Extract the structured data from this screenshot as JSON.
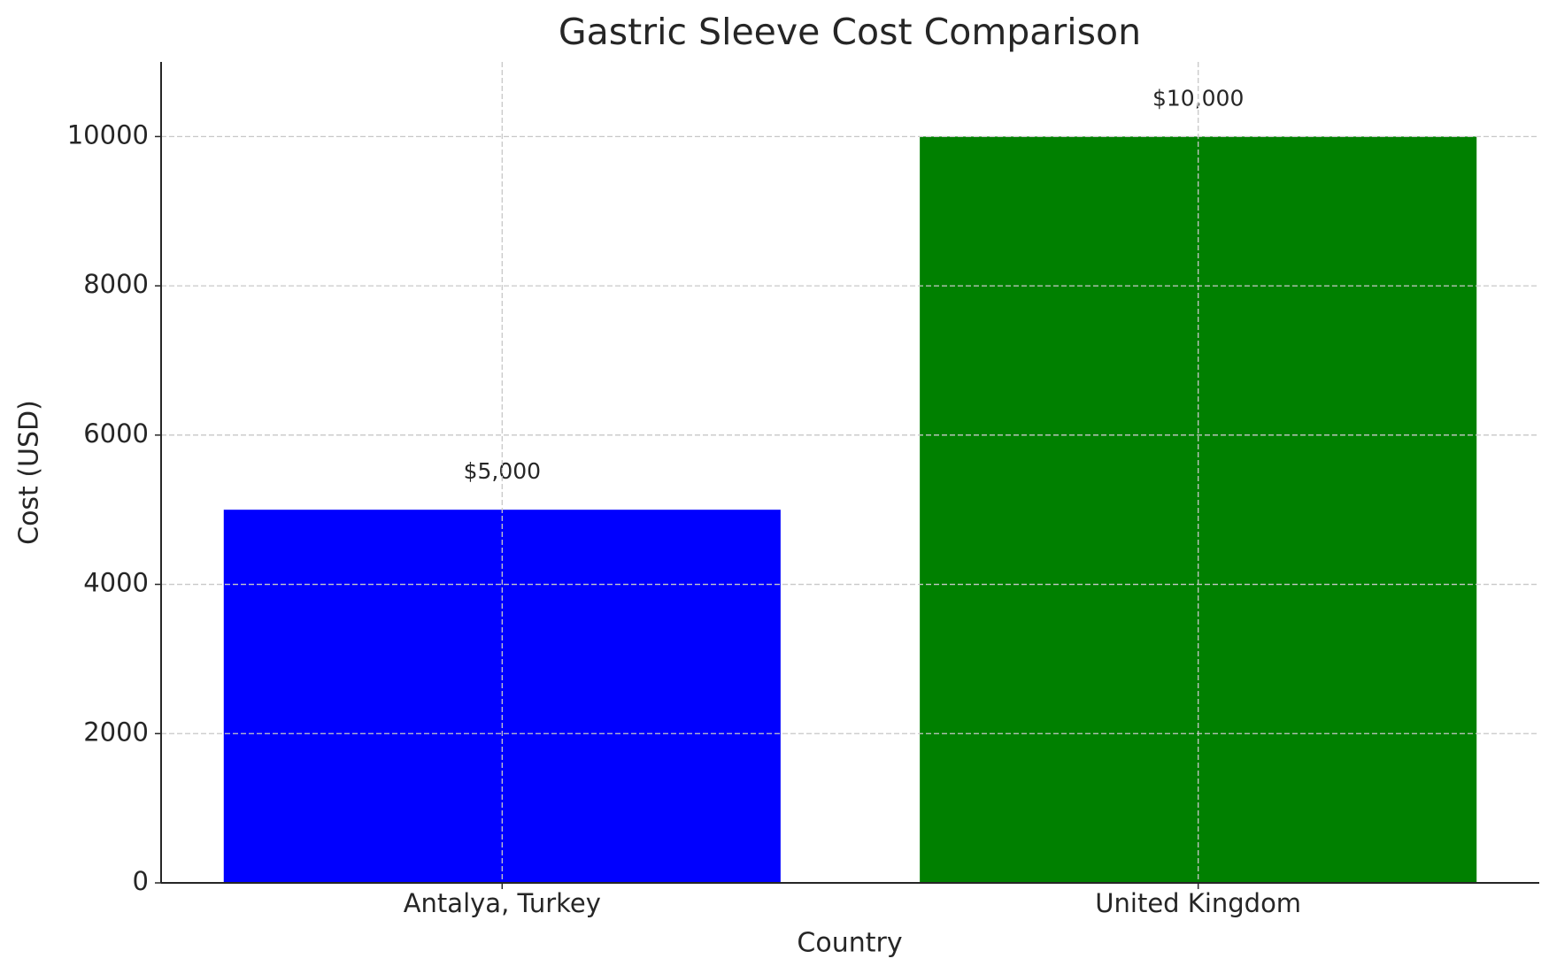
{
  "chart_data": {
    "type": "bar",
    "title": "Gastric Sleeve Cost Comparison",
    "x_label": "Country",
    "y_label": "Cost (USD)",
    "categories": [
      "Antalya, Turkey",
      "United Kingdom"
    ],
    "values": [
      5000,
      10000
    ],
    "value_labels": [
      "$5,000",
      "$10,000"
    ],
    "colors": [
      "#0000ff",
      "#008000"
    ],
    "ylim": [
      0,
      11000
    ],
    "yticks": [
      0,
      2000,
      4000,
      6000,
      8000,
      10000
    ],
    "grid": true
  }
}
